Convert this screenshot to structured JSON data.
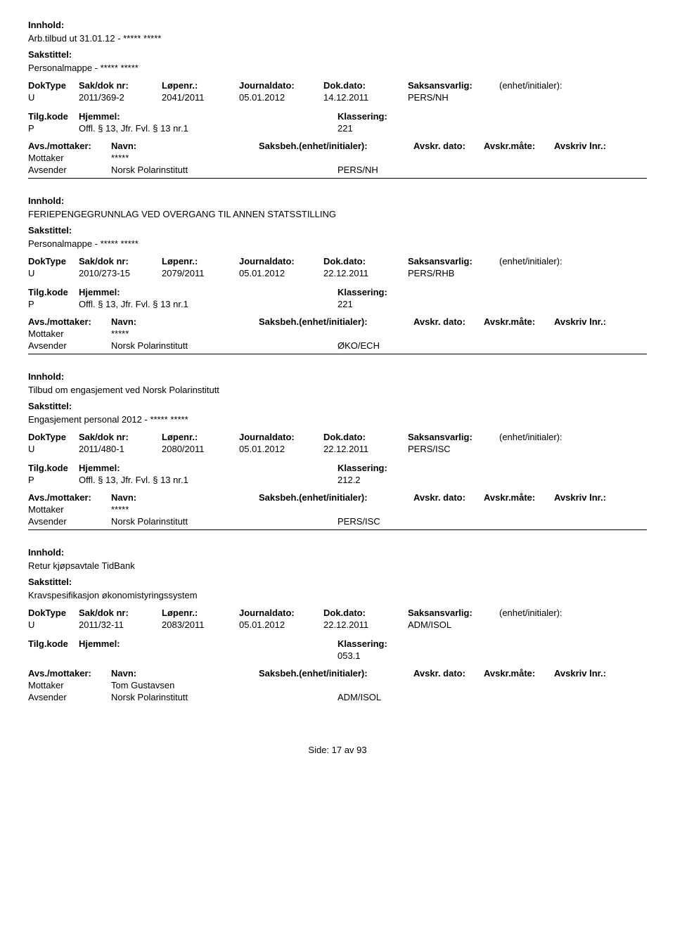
{
  "labels": {
    "innhold": "Innhold:",
    "sakstittel": "Sakstittel:",
    "doktype": "DokType",
    "sakdoknr": "Sak/dok nr:",
    "lopenr": "Løpenr.:",
    "journaldato": "Journaldato:",
    "dokdato": "Dok.dato:",
    "saksansvarlig": "Saksansvarlig:",
    "enhet": "(enhet/initialer):",
    "tilgkode": "Tilg.kode",
    "hjemmel": "Hjemmel:",
    "klassering": "Klassering:",
    "avsmottaker": "Avs./mottaker:",
    "navn": "Navn:",
    "saksbeh": "Saksbeh.(enhet/initialer):",
    "avskrdato": "Avskr. dato:",
    "avskrmate": "Avskr.måte:",
    "avskrivlnr": "Avskriv lnr.:",
    "mottaker": "Mottaker",
    "avsender": "Avsender"
  },
  "records": [
    {
      "innhold": "Arb.tilbud ut 31.01.12 - ***** *****",
      "sakstittel": "Personalmappe - ***** *****",
      "doktype": "U",
      "sakdoknr": "2011/369-2",
      "lopenr": "2041/2011",
      "journaldato": "05.01.2012",
      "dokdato": "14.12.2011",
      "saksansvarlig": "PERS/NH",
      "tilgkode": "P",
      "hjemmel": "Offl. § 13, Jfr. Fvl. § 13 nr.1",
      "klassering": "221",
      "mottaker_navn": "*****",
      "avsender_navn": "Norsk Polarinstitutt",
      "saksbeh": "PERS/NH"
    },
    {
      "innhold": "FERIEPENGEGRUNNLAG VED OVERGANG TIL ANNEN STATSSTILLING",
      "sakstittel": "Personalmappe - ***** *****",
      "doktype": "U",
      "sakdoknr": "2010/273-15",
      "lopenr": "2079/2011",
      "journaldato": "05.01.2012",
      "dokdato": "22.12.2011",
      "saksansvarlig": "PERS/RHB",
      "tilgkode": "P",
      "hjemmel": "Offl. § 13, Jfr. Fvl. § 13 nr.1",
      "klassering": "221",
      "mottaker_navn": "*****",
      "avsender_navn": "Norsk Polarinstitutt",
      "saksbeh": "ØKO/ECH"
    },
    {
      "innhold": "Tilbud om engasjement ved Norsk Polarinstitutt",
      "sakstittel": "Engasjement personal 2012 - ***** *****",
      "doktype": "U",
      "sakdoknr": "2011/480-1",
      "lopenr": "2080/2011",
      "journaldato": "05.01.2012",
      "dokdato": "22.12.2011",
      "saksansvarlig": "PERS/ISC",
      "tilgkode": "P",
      "hjemmel": "Offl. § 13, Jfr. Fvl. § 13 nr.1",
      "klassering": "212.2",
      "mottaker_navn": "*****",
      "avsender_navn": "Norsk Polarinstitutt",
      "saksbeh": "PERS/ISC"
    },
    {
      "innhold": "Retur kjøpsavtale TidBank",
      "sakstittel": "Kravspesifikasjon økonomistyringssystem",
      "doktype": "U",
      "sakdoknr": "2011/32-11",
      "lopenr": "2083/2011",
      "journaldato": "05.01.2012",
      "dokdato": "22.12.2011",
      "saksansvarlig": "ADM/ISOL",
      "tilgkode": "",
      "hjemmel": "",
      "klassering": "053.1",
      "mottaker_navn": "Tom Gustavsen",
      "avsender_navn": "Norsk Polarinstitutt",
      "saksbeh": "ADM/ISOL"
    }
  ],
  "footer": {
    "side_label": "Side:",
    "page": "17",
    "av": "av",
    "total": "93"
  }
}
